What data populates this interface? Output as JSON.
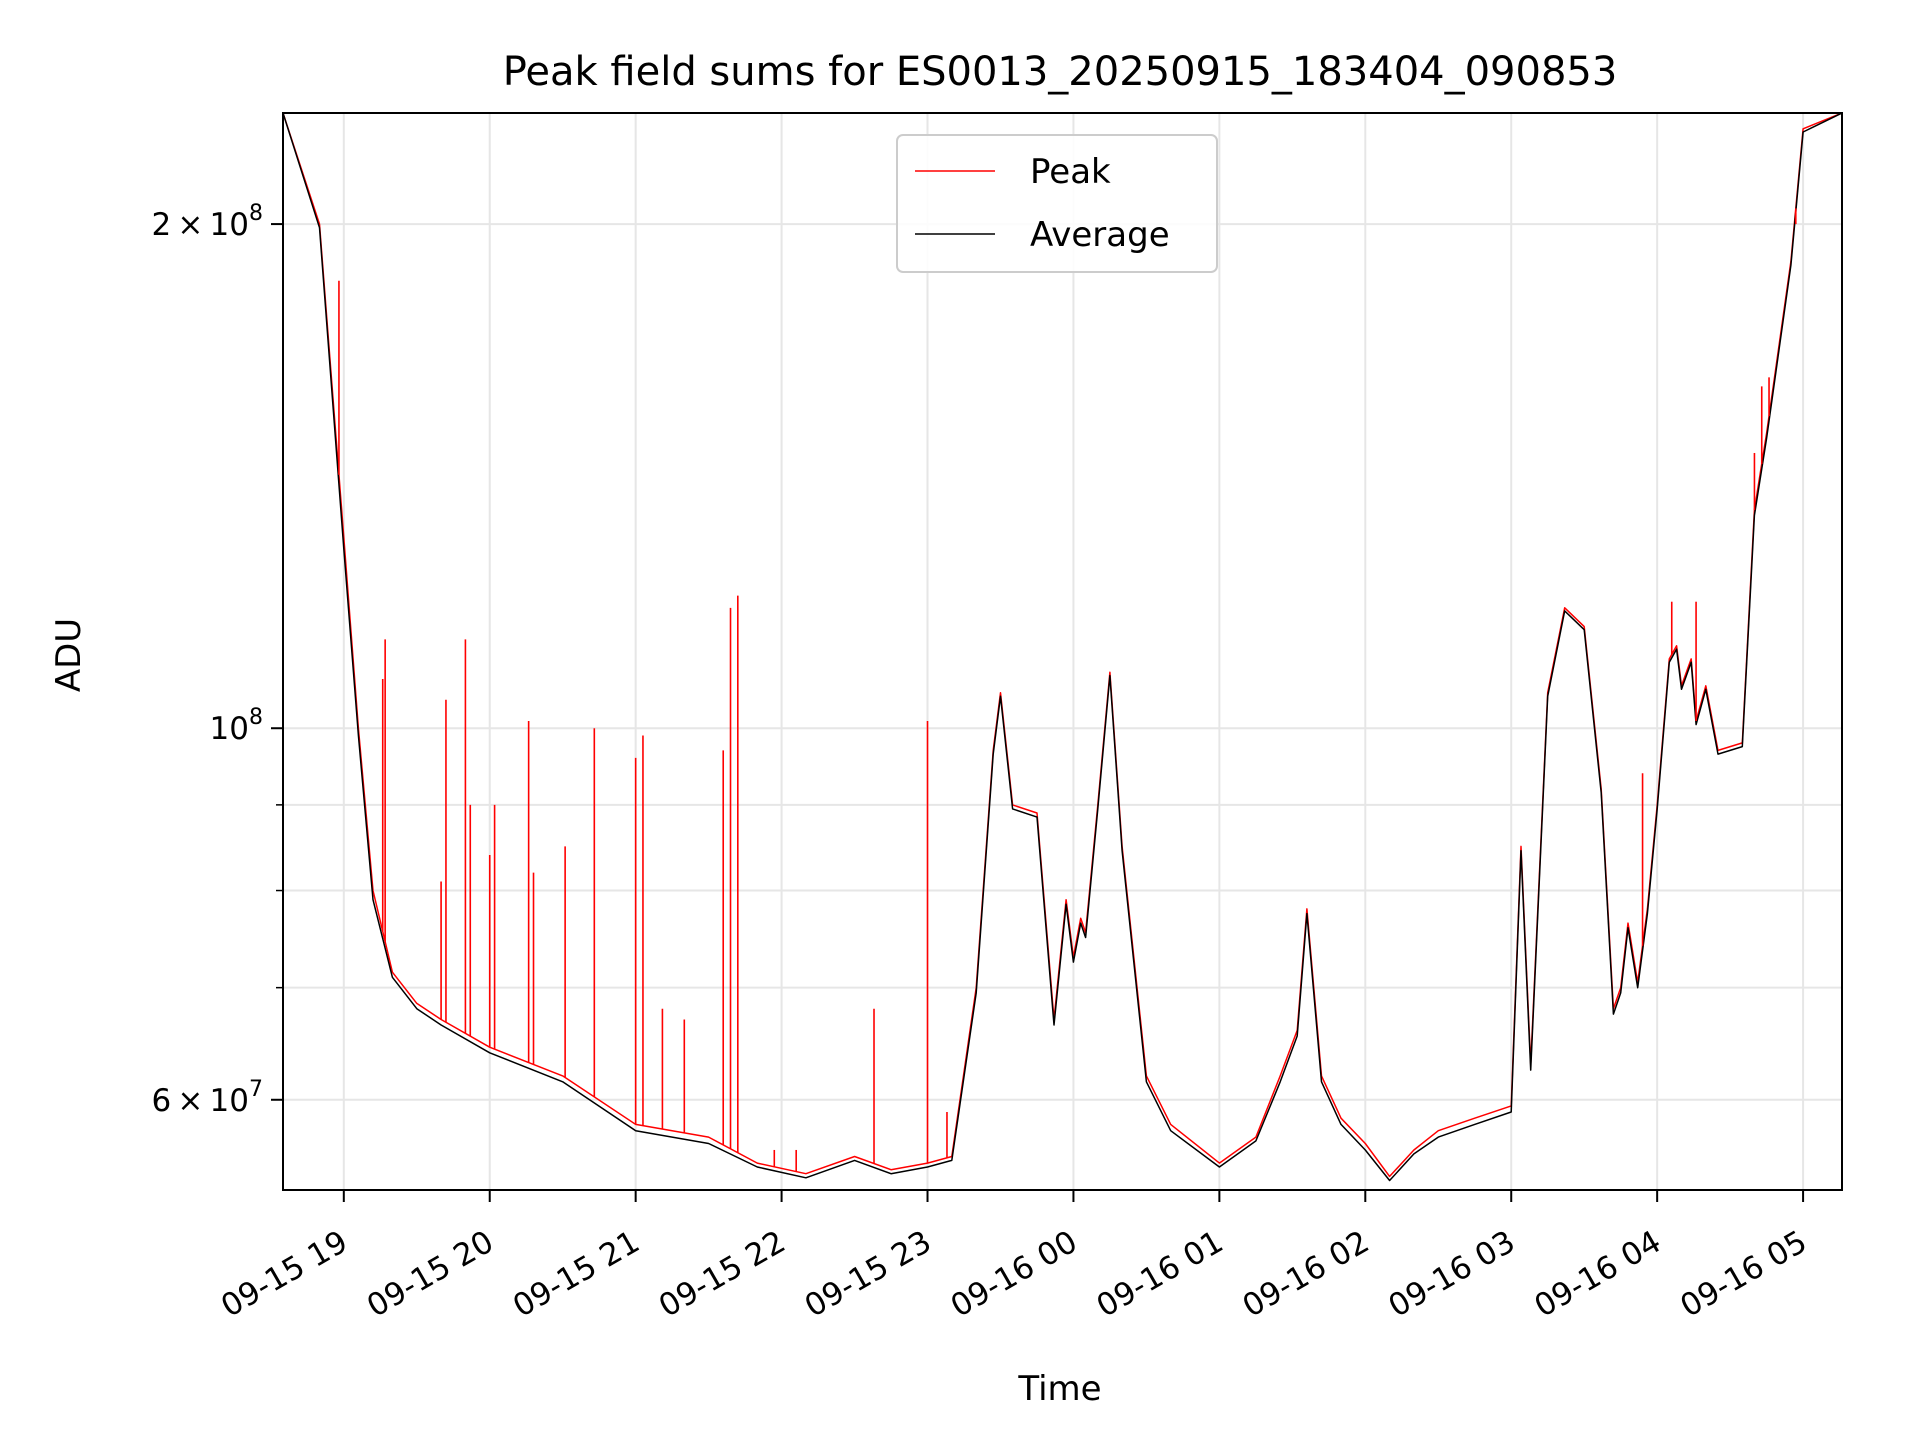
{
  "chart_data": {
    "type": "line",
    "title": "Peak field sums for ES0013_20250915_183404_090853",
    "xlabel": "Time",
    "ylabel": "ADU",
    "x_scale": "time",
    "y_scale": "log",
    "xlim": [
      "2025-09-15 18:35",
      "2025-09-16 05:16"
    ],
    "ylim": [
      53000000,
      233000000
    ],
    "grid": true,
    "legend_position": "top-center",
    "x_ticks": [
      {
        "time": "2025-09-15 19:00",
        "label": "09-15 19"
      },
      {
        "time": "2025-09-15 20:00",
        "label": "09-15 20"
      },
      {
        "time": "2025-09-15 21:00",
        "label": "09-15 21"
      },
      {
        "time": "2025-09-15 22:00",
        "label": "09-15 22"
      },
      {
        "time": "2025-09-15 23:00",
        "label": "09-15 23"
      },
      {
        "time": "2025-09-16 00:00",
        "label": "09-16 00"
      },
      {
        "time": "2025-09-16 01:00",
        "label": "09-16 01"
      },
      {
        "time": "2025-09-16 02:00",
        "label": "09-16 02"
      },
      {
        "time": "2025-09-16 03:00",
        "label": "09-16 03"
      },
      {
        "time": "2025-09-16 04:00",
        "label": "09-16 04"
      },
      {
        "time": "2025-09-16 05:00",
        "label": "09-16 05"
      }
    ],
    "y_major_ticks": [
      {
        "value": 60000000,
        "base": "6",
        "exp": "7"
      },
      {
        "value": 100000000,
        "base": "",
        "exp": "8"
      },
      {
        "value": 200000000,
        "base": "2",
        "exp": "8"
      }
    ],
    "y_minor_ticks": [
      70000000,
      80000000,
      90000000
    ],
    "series": [
      {
        "name": "Peak",
        "color": "#ff0000",
        "line_width": 1.5,
        "points": [
          [
            "2025-09-15 18:35",
            233000000
          ],
          [
            "2025-09-15 18:50",
            200000000
          ],
          [
            "2025-09-15 19:00",
            130000000
          ],
          [
            "2025-09-15 19:06",
            100000000
          ],
          [
            "2025-09-15 19:12",
            80000000
          ],
          [
            "2025-09-15 19:20",
            71500000
          ],
          [
            "2025-09-15 19:30",
            68500000
          ],
          [
            "2025-09-15 19:40",
            67000000
          ],
          [
            "2025-09-15 20:00",
            64500000
          ],
          [
            "2025-09-15 20:30",
            62000000
          ],
          [
            "2025-09-15 21:00",
            58000000
          ],
          [
            "2025-09-15 21:30",
            57000000
          ],
          [
            "2025-09-15 21:50",
            55000000
          ],
          [
            "2025-09-15 22:10",
            54200000
          ],
          [
            "2025-09-15 22:30",
            55500000
          ],
          [
            "2025-09-15 22:45",
            54500000
          ],
          [
            "2025-09-15 23:00",
            55000000
          ],
          [
            "2025-09-15 23:10",
            55500000
          ],
          [
            "2025-09-15 23:20",
            70000000
          ],
          [
            "2025-09-15 23:27",
            97000000
          ],
          [
            "2025-09-15 23:30",
            105000000
          ],
          [
            "2025-09-15 23:35",
            90000000
          ],
          [
            "2025-09-15 23:45",
            89000000
          ],
          [
            "2025-09-15 23:52",
            67000000
          ],
          [
            "2025-09-15 23:57",
            79000000
          ],
          [
            "2025-09-16 00:00",
            73000000
          ],
          [
            "2025-09-16 00:03",
            77000000
          ],
          [
            "2025-09-16 00:05",
            75500000
          ],
          [
            "2025-09-16 00:10",
            90000000
          ],
          [
            "2025-09-16 00:15",
            108000000
          ],
          [
            "2025-09-16 00:20",
            85000000
          ],
          [
            "2025-09-16 00:30",
            62000000
          ],
          [
            "2025-09-16 00:40",
            58000000
          ],
          [
            "2025-09-16 01:00",
            55000000
          ],
          [
            "2025-09-16 01:15",
            57000000
          ],
          [
            "2025-09-16 01:25",
            62000000
          ],
          [
            "2025-09-16 01:32",
            66000000
          ],
          [
            "2025-09-16 01:36",
            78000000
          ],
          [
            "2025-09-16 01:42",
            62000000
          ],
          [
            "2025-09-16 01:50",
            58500000
          ],
          [
            "2025-09-16 02:00",
            56500000
          ],
          [
            "2025-09-16 02:10",
            54000000
          ],
          [
            "2025-09-16 02:20",
            56000000
          ],
          [
            "2025-09-16 02:30",
            57500000
          ],
          [
            "2025-09-16 02:45",
            58500000
          ],
          [
            "2025-09-16 03:00",
            59500000
          ],
          [
            "2025-09-16 03:04",
            85000000
          ],
          [
            "2025-09-16 03:08",
            63000000
          ],
          [
            "2025-09-16 03:15",
            105000000
          ],
          [
            "2025-09-16 03:22",
            118000000
          ],
          [
            "2025-09-16 03:30",
            115000000
          ],
          [
            "2025-09-16 03:37",
            92000000
          ],
          [
            "2025-09-16 03:42",
            68000000
          ],
          [
            "2025-09-16 03:45",
            70000000
          ],
          [
            "2025-09-16 03:48",
            76500000
          ],
          [
            "2025-09-16 03:52",
            70500000
          ],
          [
            "2025-09-16 03:56",
            78000000
          ],
          [
            "2025-09-16 04:00",
            90000000
          ],
          [
            "2025-09-16 04:05",
            110000000
          ],
          [
            "2025-09-16 04:08",
            112000000
          ],
          [
            "2025-09-16 04:10",
            106000000
          ],
          [
            "2025-09-16 04:14",
            110000000
          ],
          [
            "2025-09-16 04:16",
            101000000
          ],
          [
            "2025-09-16 04:20",
            106000000
          ],
          [
            "2025-09-16 04:25",
            97000000
          ],
          [
            "2025-09-16 04:35",
            98000000
          ],
          [
            "2025-09-16 04:40",
            135000000
          ],
          [
            "2025-09-16 04:45",
            150000000
          ],
          [
            "2025-09-16 04:55",
            190000000
          ],
          [
            "2025-09-16 05:00",
            228000000
          ],
          [
            "2025-09-16 05:16",
            233000000
          ]
        ]
      },
      {
        "name": "Average",
        "color": "#000000",
        "line_width": 1.5,
        "points": [
          [
            "2025-09-15 18:35",
            233000000
          ],
          [
            "2025-09-15 18:50",
            199000000
          ],
          [
            "2025-09-15 19:00",
            128000000
          ],
          [
            "2025-09-15 19:06",
            99000000
          ],
          [
            "2025-09-15 19:12",
            79000000
          ],
          [
            "2025-09-15 19:20",
            71000000
          ],
          [
            "2025-09-15 19:30",
            68000000
          ],
          [
            "2025-09-15 19:40",
            66500000
          ],
          [
            "2025-09-15 20:00",
            64000000
          ],
          [
            "2025-09-15 20:30",
            61500000
          ],
          [
            "2025-09-15 21:00",
            57500000
          ],
          [
            "2025-09-15 21:30",
            56500000
          ],
          [
            "2025-09-15 21:50",
            54700000
          ],
          [
            "2025-09-15 22:10",
            53900000
          ],
          [
            "2025-09-15 22:30",
            55200000
          ],
          [
            "2025-09-15 22:45",
            54200000
          ],
          [
            "2025-09-15 23:00",
            54700000
          ],
          [
            "2025-09-15 23:10",
            55200000
          ],
          [
            "2025-09-15 23:20",
            69500000
          ],
          [
            "2025-09-15 23:27",
            96500000
          ],
          [
            "2025-09-15 23:30",
            104500000
          ],
          [
            "2025-09-15 23:35",
            89500000
          ],
          [
            "2025-09-15 23:45",
            88500000
          ],
          [
            "2025-09-15 23:52",
            66500000
          ],
          [
            "2025-09-15 23:57",
            78500000
          ],
          [
            "2025-09-16 00:00",
            72500000
          ],
          [
            "2025-09-16 00:03",
            76500000
          ],
          [
            "2025-09-16 00:05",
            75000000
          ],
          [
            "2025-09-16 00:10",
            89500000
          ],
          [
            "2025-09-16 00:15",
            107500000
          ],
          [
            "2025-09-16 00:20",
            84500000
          ],
          [
            "2025-09-16 00:30",
            61500000
          ],
          [
            "2025-09-16 00:40",
            57500000
          ],
          [
            "2025-09-16 01:00",
            54700000
          ],
          [
            "2025-09-16 01:15",
            56700000
          ],
          [
            "2025-09-16 01:25",
            61500000
          ],
          [
            "2025-09-16 01:32",
            65500000
          ],
          [
            "2025-09-16 01:36",
            77500000
          ],
          [
            "2025-09-16 01:42",
            61500000
          ],
          [
            "2025-09-16 01:50",
            58000000
          ],
          [
            "2025-09-16 02:00",
            56000000
          ],
          [
            "2025-09-16 02:10",
            53700000
          ],
          [
            "2025-09-16 02:20",
            55700000
          ],
          [
            "2025-09-16 02:30",
            57000000
          ],
          [
            "2025-09-16 02:45",
            58000000
          ],
          [
            "2025-09-16 03:00",
            59000000
          ],
          [
            "2025-09-16 03:04",
            84500000
          ],
          [
            "2025-09-16 03:08",
            62500000
          ],
          [
            "2025-09-16 03:15",
            104500000
          ],
          [
            "2025-09-16 03:22",
            117500000
          ],
          [
            "2025-09-16 03:30",
            114500000
          ],
          [
            "2025-09-16 03:37",
            91500000
          ],
          [
            "2025-09-16 03:42",
            67500000
          ],
          [
            "2025-09-16 03:45",
            69500000
          ],
          [
            "2025-09-16 03:48",
            76000000
          ],
          [
            "2025-09-16 03:52",
            70000000
          ],
          [
            "2025-09-16 03:56",
            77500000
          ],
          [
            "2025-09-16 04:00",
            89500000
          ],
          [
            "2025-09-16 04:05",
            109500000
          ],
          [
            "2025-09-16 04:08",
            111500000
          ],
          [
            "2025-09-16 04:10",
            105500000
          ],
          [
            "2025-09-16 04:14",
            109500000
          ],
          [
            "2025-09-16 04:16",
            100500000
          ],
          [
            "2025-09-16 04:20",
            105500000
          ],
          [
            "2025-09-16 04:25",
            96500000
          ],
          [
            "2025-09-16 04:35",
            97500000
          ],
          [
            "2025-09-16 04:40",
            134000000
          ],
          [
            "2025-09-16 04:45",
            149000000
          ],
          [
            "2025-09-16 04:55",
            189000000
          ],
          [
            "2025-09-16 05:00",
            227000000
          ],
          [
            "2025-09-16 05:16",
            233000000
          ]
        ]
      }
    ],
    "spikes": {
      "series": "Peak",
      "points": [
        [
          "2025-09-15 18:58",
          185000000
        ],
        [
          "2025-09-15 19:06",
          100000000
        ],
        [
          "2025-09-15 19:16",
          107000000
        ],
        [
          "2025-09-15 19:17",
          113000000
        ],
        [
          "2025-09-15 19:40",
          81000000
        ],
        [
          "2025-09-15 19:42",
          104000000
        ],
        [
          "2025-09-15 19:50",
          113000000
        ],
        [
          "2025-09-15 19:52",
          90000000
        ],
        [
          "2025-09-15 20:00",
          84000000
        ],
        [
          "2025-09-15 20:02",
          90000000
        ],
        [
          "2025-09-15 20:16",
          101000000
        ],
        [
          "2025-09-15 20:18",
          82000000
        ],
        [
          "2025-09-15 20:31",
          85000000
        ],
        [
          "2025-09-15 20:43",
          100000000
        ],
        [
          "2025-09-15 21:00",
          96000000
        ],
        [
          "2025-09-15 21:03",
          99000000
        ],
        [
          "2025-09-15 21:11",
          68000000
        ],
        [
          "2025-09-15 21:20",
          67000000
        ],
        [
          "2025-09-15 21:36",
          97000000
        ],
        [
          "2025-09-15 21:39",
          118000000
        ],
        [
          "2025-09-15 21:42",
          120000000
        ],
        [
          "2025-09-15 21:57",
          56000000
        ],
        [
          "2025-09-15 22:06",
          56000000
        ],
        [
          "2025-09-15 22:38",
          68000000
        ],
        [
          "2025-09-15 23:00",
          101000000
        ],
        [
          "2025-09-15 23:08",
          59000000
        ],
        [
          "2025-09-16 03:54",
          94000000
        ],
        [
          "2025-09-16 04:06",
          119000000
        ],
        [
          "2025-09-16 04:16",
          119000000
        ],
        [
          "2025-09-16 04:40",
          146000000
        ],
        [
          "2025-09-16 04:43",
          160000000
        ],
        [
          "2025-09-16 04:46",
          162000000
        ],
        [
          "2025-09-16 04:57",
          200000000
        ]
      ]
    }
  }
}
